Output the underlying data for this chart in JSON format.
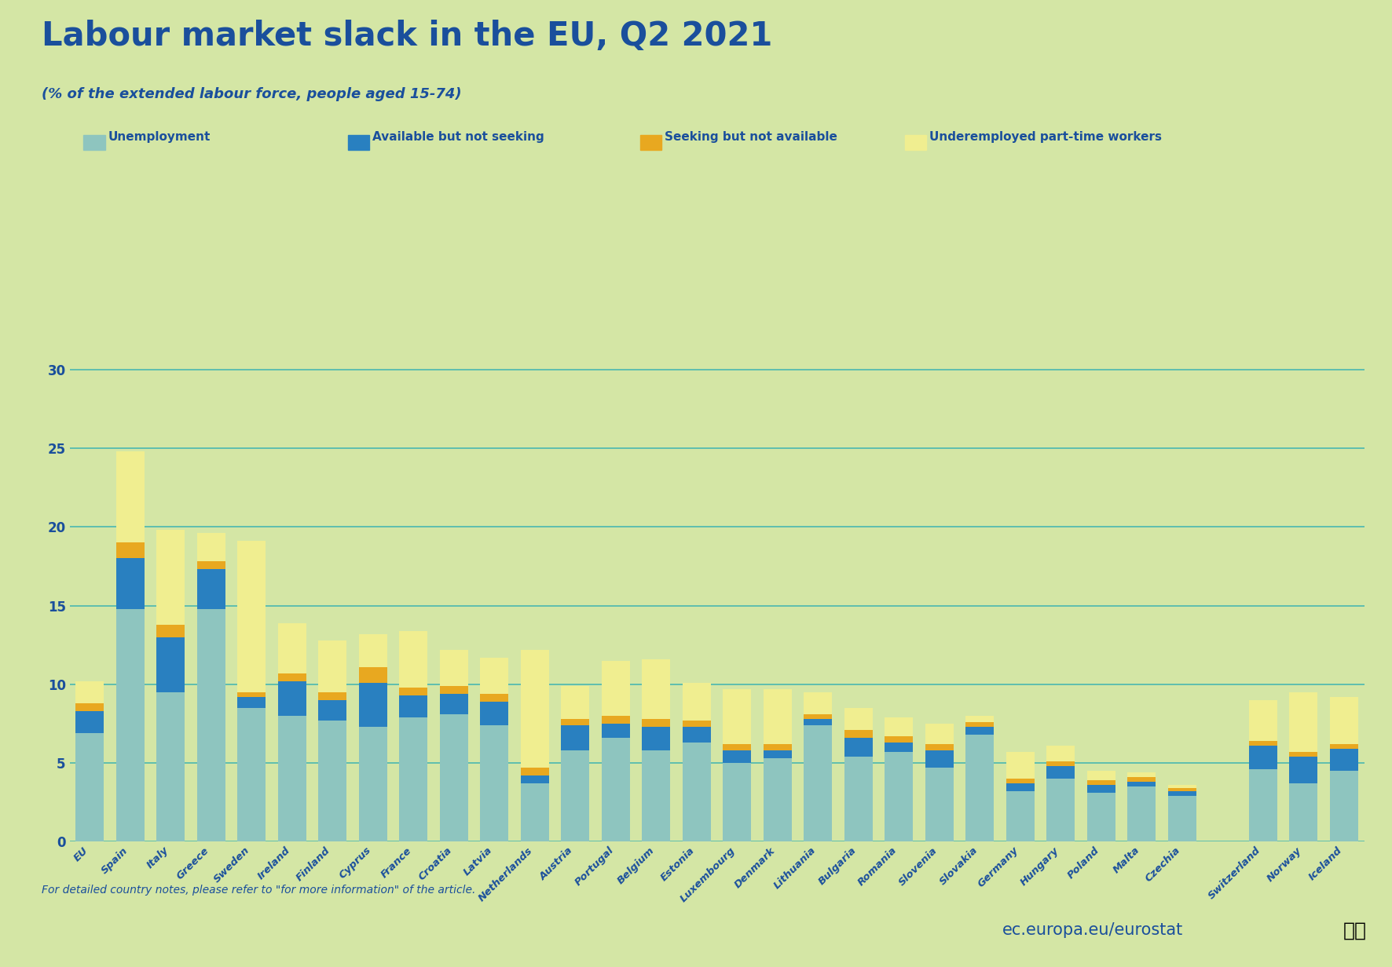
{
  "title": "Labour market slack in the EU, Q2 2021",
  "subtitle": "(% of the extended labour force, people aged 15-74)",
  "background_color": "#d4e6a5",
  "plot_background_color": "#d4e6a5",
  "title_color": "#1a4f9c",
  "grid_color": "#4ab8b0",
  "footer_note": "For detailed country notes, please refer to \"for more information\" of the article.",
  "eurostat_text": "ec.europa.eu/eurostat",
  "legend_labels": [
    "Unemployment",
    "Available but not seeking",
    "Seeking but not available",
    "Underemployed part-time workers"
  ],
  "colors": [
    "#8ec5bf",
    "#2980c0",
    "#e8a820",
    "#f0ee90"
  ],
  "categories": [
    "EU",
    "Spain",
    "Italy",
    "Greece",
    "Sweden",
    "Ireland",
    "Finland",
    "Cyprus",
    "France",
    "Croatia",
    "Latvia",
    "Netherlands",
    "Austria",
    "Portugal",
    "Belgium",
    "Estonia",
    "Luxembourg",
    "Denmark",
    "Lithuania",
    "Bulgaria",
    "Romania",
    "Slovenia",
    "Slovakia",
    "Germany",
    "Hungary",
    "Poland",
    "Malta",
    "Czechia",
    "",
    "Switzerland",
    "Norway",
    "Iceland"
  ],
  "unemployment": [
    6.9,
    14.8,
    9.5,
    14.8,
    8.5,
    8.0,
    7.7,
    7.3,
    7.9,
    8.1,
    7.4,
    3.7,
    5.8,
    6.6,
    5.8,
    6.3,
    5.0,
    5.3,
    7.4,
    5.4,
    5.7,
    4.7,
    6.8,
    3.2,
    4.0,
    3.1,
    3.5,
    2.9,
    0,
    4.6,
    3.7,
    4.5
  ],
  "available_not_seeking": [
    1.4,
    3.2,
    3.5,
    2.5,
    0.7,
    2.2,
    1.3,
    2.8,
    1.4,
    1.3,
    1.5,
    0.5,
    1.6,
    0.9,
    1.5,
    1.0,
    0.8,
    0.5,
    0.4,
    1.2,
    0.6,
    1.1,
    0.5,
    0.5,
    0.8,
    0.5,
    0.3,
    0.3,
    0,
    1.5,
    1.7,
    1.4
  ],
  "seeking_not_available": [
    0.5,
    1.0,
    0.8,
    0.5,
    0.3,
    0.5,
    0.5,
    1.0,
    0.5,
    0.5,
    0.5,
    0.5,
    0.4,
    0.5,
    0.5,
    0.4,
    0.4,
    0.4,
    0.3,
    0.5,
    0.4,
    0.4,
    0.3,
    0.3,
    0.3,
    0.3,
    0.3,
    0.2,
    0,
    0.3,
    0.3,
    0.3
  ],
  "underemployed": [
    1.4,
    5.8,
    6.0,
    1.8,
    9.6,
    3.2,
    3.3,
    2.1,
    3.6,
    2.3,
    2.3,
    7.5,
    2.1,
    3.5,
    3.8,
    2.4,
    3.5,
    3.5,
    1.4,
    1.4,
    1.2,
    1.3,
    0.4,
    1.7,
    1.0,
    0.6,
    0.3,
    0.2,
    0,
    2.6,
    3.8,
    3.0
  ],
  "ylim": [
    0,
    32
  ],
  "yticks": [
    0,
    5,
    10,
    15,
    20,
    25,
    30
  ]
}
